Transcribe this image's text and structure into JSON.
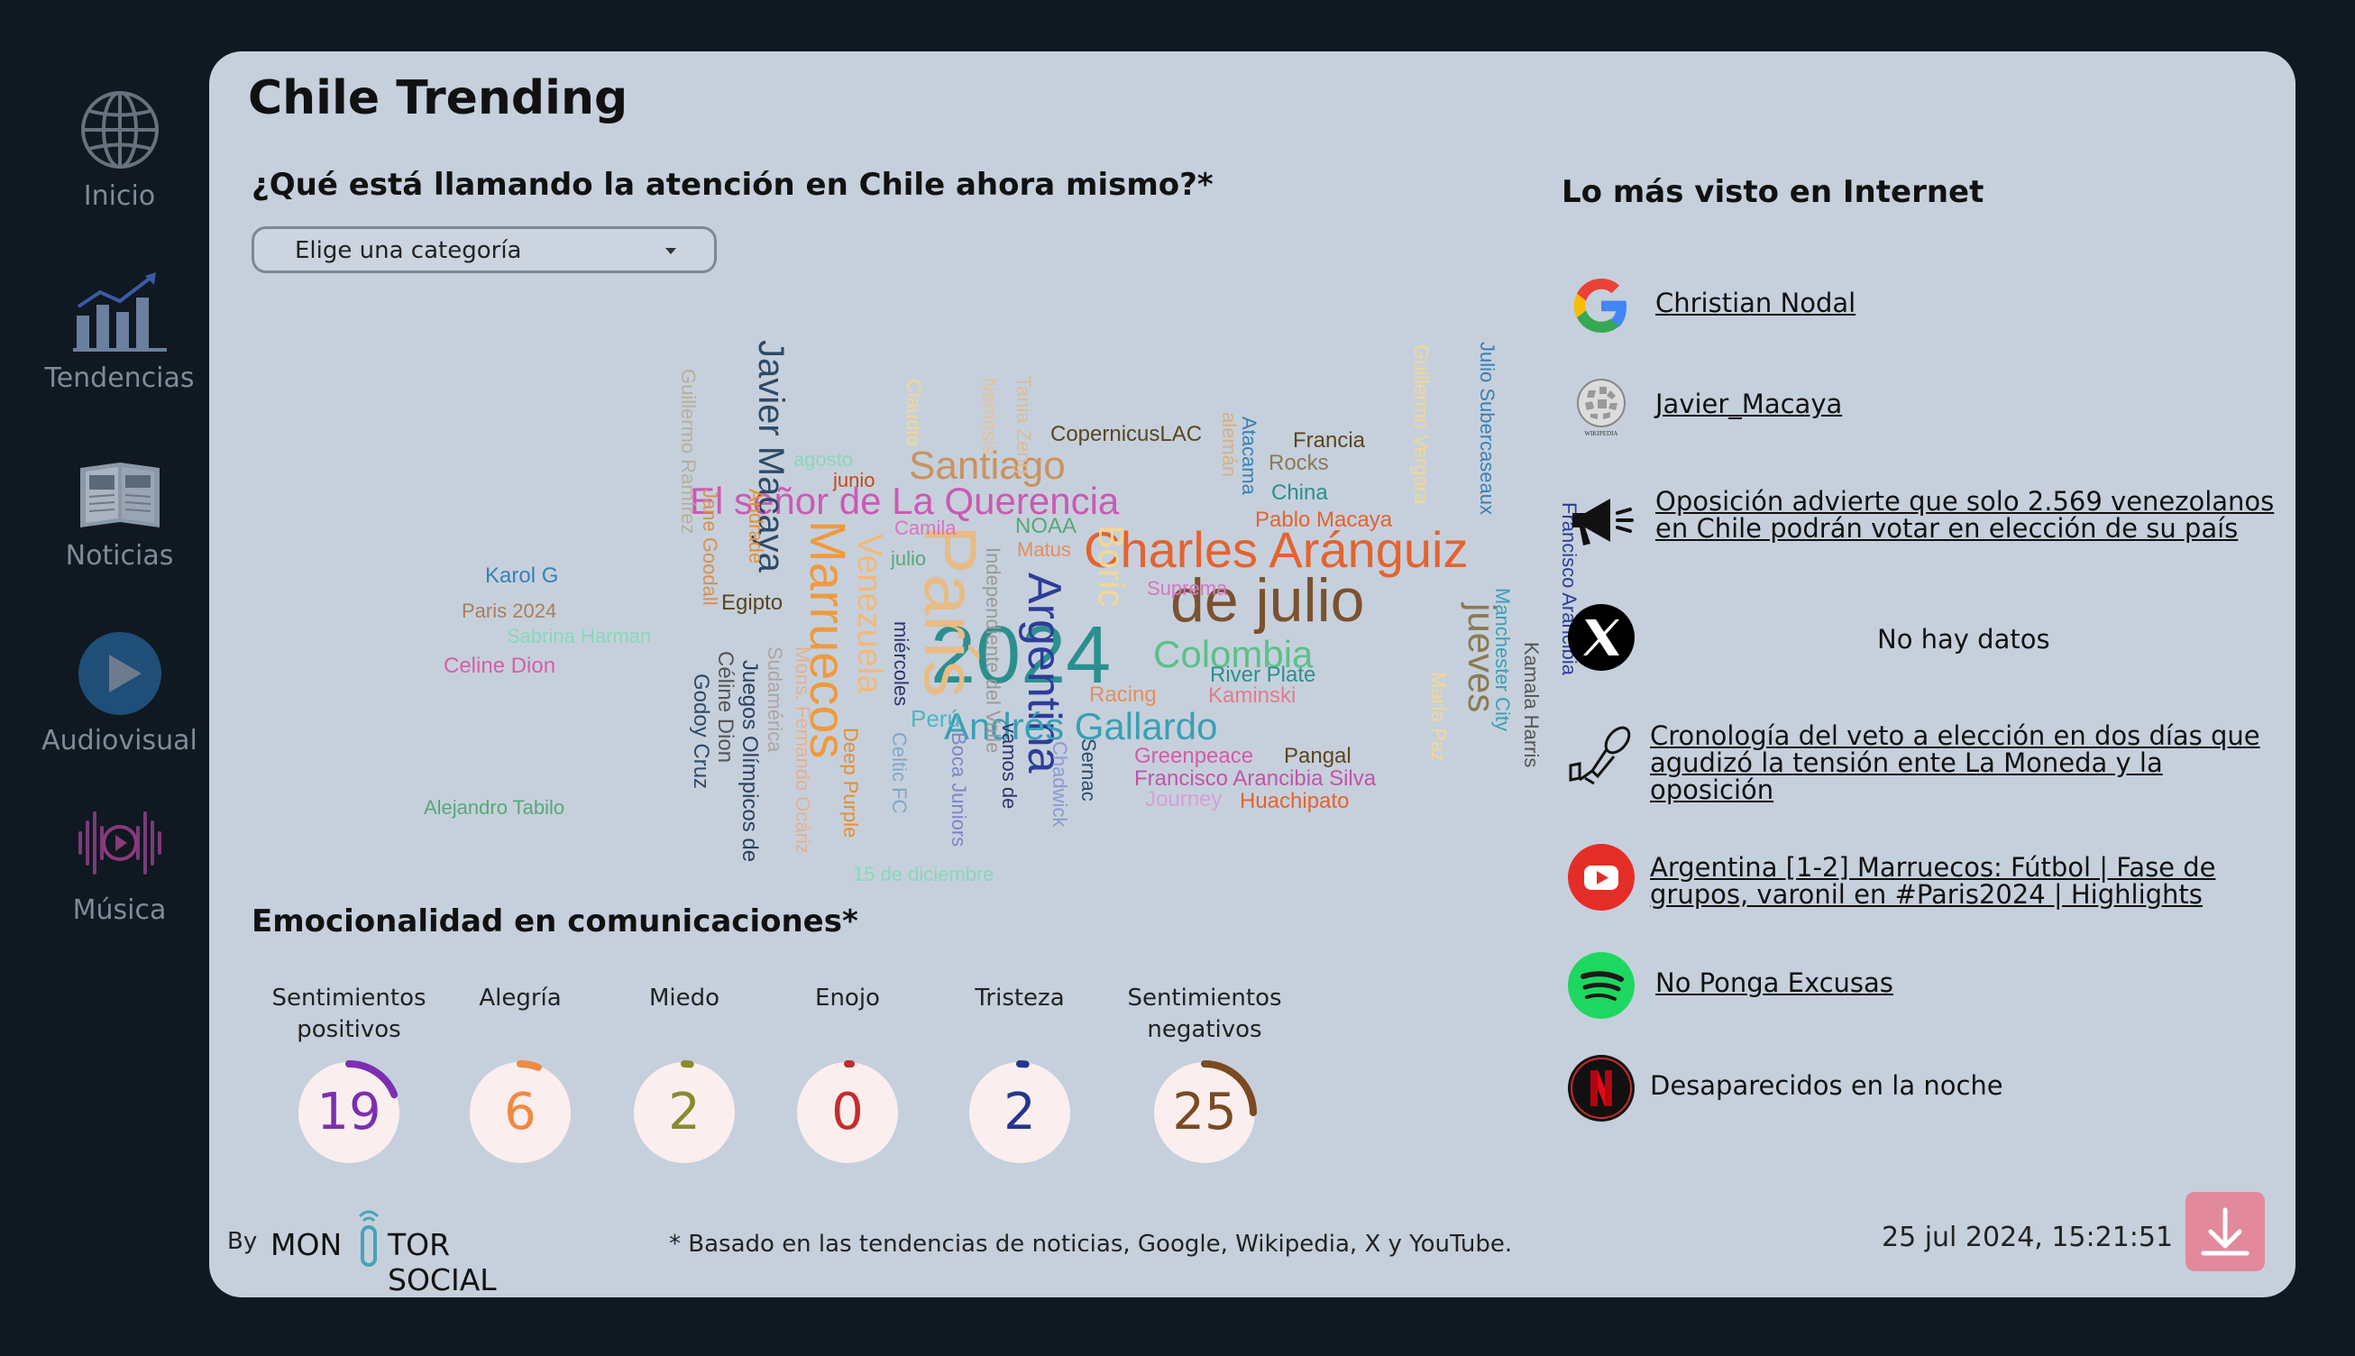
{
  "sidebar": {
    "items": [
      {
        "label": "Inicio",
        "icon": "globe-icon"
      },
      {
        "label": "Tendencias",
        "icon": "bar-chart-icon"
      },
      {
        "label": "Noticias",
        "icon": "newspaper-icon"
      },
      {
        "label": "Audiovisual",
        "icon": "play-icon"
      },
      {
        "label": "Música",
        "icon": "music-icon"
      }
    ]
  },
  "page": {
    "title": "Chile Trending",
    "question": "¿Qué está llamando la atención en Chile ahora mismo?*",
    "category_select": "Elige una categoría",
    "emotions_title": "Emocionalidad en comunicaciones*",
    "internet_title": "Lo más visto en Internet"
  },
  "wordcloud": [
    "Charles Aránguiz",
    "2024",
    "de julio",
    "El señor de La Querencia",
    "Argentina",
    "París",
    "Marruecos",
    "Javier Macaya",
    "Andrés Gallardo",
    "Colombia",
    "Santiago",
    "jueves",
    "Venezuela",
    "Boric",
    "Guillermo Ramírez",
    "Karol G",
    "Paris 2024",
    "Sabrina Harman",
    "Celine Dion",
    "Alejandro Tabilo",
    "Godoy Cruz",
    "Céline Dion",
    "Juegos Olímpicos de",
    "Sudamérica",
    "Mons. Fernando Ocáriz",
    "Deep Purple",
    "Celtic FC",
    "Boca Juniors",
    "Independiente del Valle",
    "miércoles",
    "vamos de",
    "Sernac",
    "Chadwick",
    "Perú",
    "Racing",
    "Kaminski",
    "River Plate",
    "Greenpeace",
    "Pangal",
    "Francisco Arancibia Silva",
    "Journey",
    "Huachipato",
    "CopernicusLAC",
    "Francia",
    "Rocks",
    "China",
    "Pablo Macaya",
    "Atacama",
    "alemán",
    "Tania Zeng",
    "Nemesis",
    "Claudio",
    "agosto",
    "junio",
    "Andrade",
    "Jane Goodall",
    "Egipto",
    "Camila",
    "NOAA",
    "Matus",
    "julio",
    "Suprema",
    "Julio Subercaseaux",
    "Guillermo Vergara",
    "Francisco Arancibia",
    "Manchester City",
    "Kamala Harris",
    "María Paz",
    "15 de diciembre"
  ],
  "emotions": [
    {
      "label": "Sentimientos positivos",
      "value": "19",
      "fraction": 0.19,
      "color": "#7b2fb0"
    },
    {
      "label": "Alegría",
      "value": "6",
      "fraction": 0.06,
      "color": "#f08a40"
    },
    {
      "label": "Miedo",
      "value": "2",
      "fraction": 0.02,
      "color": "#8a8a2e"
    },
    {
      "label": "Enojo",
      "value": "0",
      "fraction": 0.0,
      "color": "#c62c2c"
    },
    {
      "label": "Tristeza",
      "value": "2",
      "fraction": 0.02,
      "color": "#25368f"
    },
    {
      "label": "Sentimientos negativos",
      "value": "25",
      "fraction": 0.25,
      "color": "#7a4a22"
    }
  ],
  "internet": [
    {
      "source": "google-icon",
      "text": "Christian Nodal",
      "link": true
    },
    {
      "source": "wikipedia-icon",
      "text": "Javier_Macaya",
      "link": true
    },
    {
      "source": "megaphone-icon",
      "text": "Oposición advierte que solo 2.569 venezolanos en Chile podrán votar en elección de su país",
      "link": true
    },
    {
      "source": "x-icon",
      "text": "No hay datos",
      "link": false
    },
    {
      "source": "microphone-icon",
      "text": "Cronología del veto a elección en dos días que agudizó la tensión ente La Moneda y la oposición",
      "link": true
    },
    {
      "source": "youtube-icon",
      "text": "Argentina [1-2] Marruecos: Fútbol | Fase de grupos, varonil en #Paris2024 | Highlights",
      "link": true
    },
    {
      "source": "spotify-icon",
      "text": "No Ponga Excusas",
      "link": true
    },
    {
      "source": "netflix-icon",
      "text": "Desaparecidos en la noche",
      "link": false
    }
  ],
  "footer": {
    "by": "By",
    "brand_left": "MON",
    "brand_right": "TOR SOCIAL",
    "note": "* Basado en las tendencias de noticias, Google, Wikipedia, X y YouTube.",
    "timestamp": "25 jul 2024, 15:21:51"
  }
}
